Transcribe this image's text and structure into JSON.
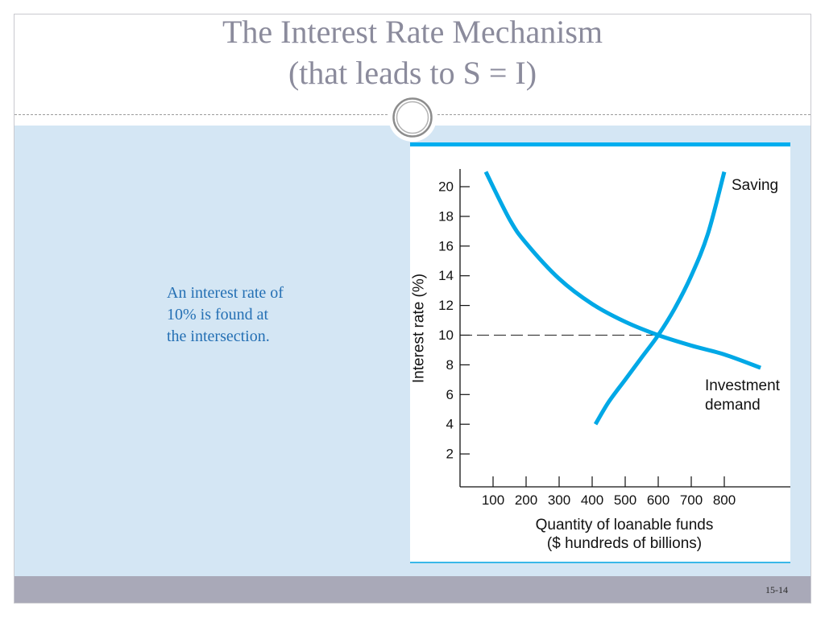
{
  "slide": {
    "title": [
      "The Interest Rate Mechanism",
      "(that leads to S = I)"
    ],
    "body_text": [
      "An interest rate of",
      "10% is found at",
      "the intersection."
    ],
    "page_number": "15-14"
  },
  "colors": {
    "title": "#8b8b9c",
    "body_text": "#2570b4",
    "content_bg": "#d4e6f4",
    "footer_bg": "#a9a9b8",
    "accent_bar": "#00aeef",
    "curve": "#00a8e6"
  },
  "chart_data": {
    "type": "line",
    "xlabel": [
      "Quantity of loanable funds",
      "($ hundreds of billions)"
    ],
    "ylabel": "Interest rate (%)",
    "xlim": [
      0,
      1000
    ],
    "ylim": [
      0,
      21
    ],
    "xticks": [
      100,
      200,
      300,
      400,
      500,
      600,
      700,
      800
    ],
    "yticks": [
      2,
      4,
      6,
      8,
      10,
      12,
      14,
      16,
      18,
      20
    ],
    "grid": false,
    "series": [
      {
        "name": "Saving",
        "x": [
          410,
          450,
          500,
          550,
          600,
          650,
          700,
          750,
          800
        ],
        "y": [
          4,
          5.5,
          7,
          8.5,
          10,
          11.8,
          14,
          16.8,
          21
        ]
      },
      {
        "name": "Investment demand",
        "x": [
          78,
          150,
          200,
          300,
          400,
          500,
          600,
          700,
          800,
          910
        ],
        "y": [
          21,
          17.8,
          16.2,
          13.8,
          12.1,
          10.9,
          10,
          9.3,
          8.7,
          7.8
        ]
      }
    ],
    "reference_line": {
      "y": 10,
      "x_end": 600
    }
  }
}
